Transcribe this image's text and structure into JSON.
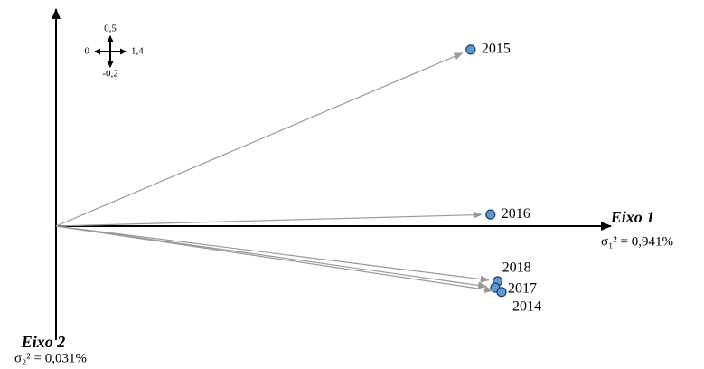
{
  "chart_data": {
    "type": "scatter",
    "x_label": "Eixo 1",
    "x_variance": "σ₁² = 0,941%",
    "y_label": "Eixo 2",
    "y_variance": "σ₂² = 0,031%",
    "categories": [
      "2015",
      "2016",
      "2018",
      "2017",
      "2014"
    ],
    "x": [
      1.048,
      1.098,
      1.116,
      1.11,
      1.126
    ],
    "values": [
      0.41,
      0.027,
      -0.128,
      -0.143,
      -0.153
    ],
    "color": "#5b9bd5",
    "xlim": [
      0,
      1.4
    ],
    "ylim": [
      -0.2,
      0.5
    ],
    "xticks": [
      0,
      {
        "value": 1.4,
        "label": "1,4"
      }
    ],
    "yticks": [
      {
        "value": -0.2,
        "label": "-0,2"
      },
      {
        "value": 0.5,
        "label": "0,5"
      }
    ]
  }
}
